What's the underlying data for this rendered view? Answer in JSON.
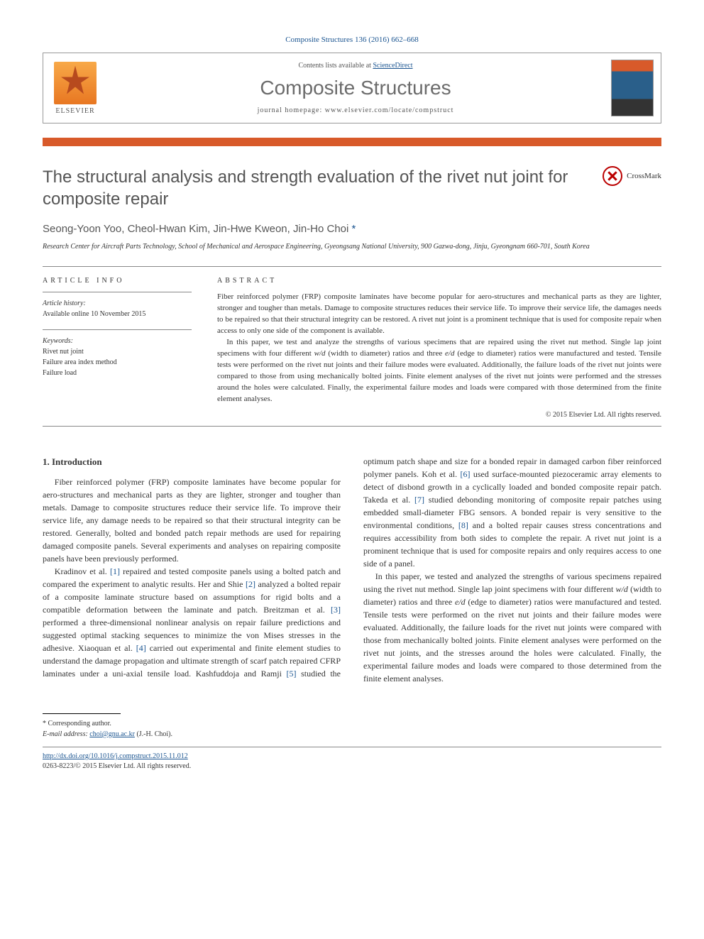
{
  "header": {
    "reference": "Composite Structures 136 (2016) 662–668",
    "contents_prefix": "Contents lists available at ",
    "contents_link": "ScienceDirect",
    "journal_name": "Composite Structures",
    "homepage_label": "journal homepage: ",
    "homepage_url": "www.elsevier.com/locate/compstruct",
    "publisher": "ELSEVIER",
    "cover_label": "COMPOSITE STRUCTURES"
  },
  "article": {
    "title": "The structural analysis and strength evaluation of the rivet nut joint for composite repair",
    "crossmark": "CrossMark",
    "authors_line": "Seong-Yoon Yoo, Cheol-Hwan Kim, Jin-Hwe Kweon, Jin-Ho Choi ",
    "corresponding_marker": "*",
    "affiliation": "Research Center for Aircraft Parts Technology, School of Mechanical and Aerospace Engineering, Gyeongsang National University, 900 Gazwa-dong, Jinju, Gyeongnam 660-701, South Korea"
  },
  "info": {
    "heading": "article info",
    "history_label": "Article history:",
    "history_text": "Available online 10 November 2015",
    "keywords_label": "Keywords:",
    "kw1": "Rivet nut joint",
    "kw2": "Failure area index method",
    "kw3": "Failure load"
  },
  "abstract": {
    "heading": "abstract",
    "p1": "Fiber reinforced polymer (FRP) composite laminates have become popular for aero-structures and mechanical parts as they are lighter, stronger and tougher than metals. Damage to composite structures reduces their service life. To improve their service life, the damages needs to be repaired so that their structural integrity can be restored. A rivet nut joint is a prominent technique that is used for composite repair when access to only one side of the component is available.",
    "p2_a": "In this paper, we test and analyze the strengths of various specimens that are repaired using the rivet nut method. Single lap joint specimens with four different ",
    "p2_b": " (width to diameter) ratios and three ",
    "p2_c": " (edge to diameter) ratios were manufactured and tested. Tensile tests were performed on the rivet nut joints and their failure modes were evaluated. Additionally, the failure loads of the rivet nut joints were compared to those from using mechanically bolted joints. Finite element analyses of the rivet nut joints were performed and the stresses around the holes were calculated. Finally, the experimental failure modes and loads were compared with those determined from the finite element analyses.",
    "wd": "w/d",
    "ed": "e/d",
    "copyright": "© 2015 Elsevier Ltd. All rights reserved."
  },
  "body": {
    "section_heading": "1. Introduction",
    "p1": "Fiber reinforced polymer (FRP) composite laminates have become popular for aero-structures and mechanical parts as they are lighter, stronger and tougher than metals. Damage to composite structures reduce their service life. To improve their service life, any damage needs to be repaired so that their structural integrity can be restored. Generally, bolted and bonded patch repair methods are used for repairing damaged composite panels. Several experiments and analyses on repairing composite panels have been previously performed.",
    "p2_a": "Kradinov et al. ",
    "c1": "[1]",
    "p2_b": " repaired and tested composite panels using a bolted patch and compared the experiment to analytic results. Her and Shie ",
    "c2": "[2]",
    "p2_c": " analyzed a bolted repair of a composite laminate structure based on assumptions for rigid bolts and a compatible deformation between the laminate and patch. Breitzman et al. ",
    "c3": "[3]",
    "p2_d": " performed a three-dimensional nonlinear analysis on repair failure predictions and suggested optimal stacking sequences to minimize the von Mises stresses in the adhesive. Xiaoquan et al. ",
    "c4": "[4]",
    "p2_e": " carried out experimental and finite element studies to understand the damage propagation and ultimate strength of scarf patch repaired CFRP laminates under a uni-axial tensile load. Kashfuddoja and Ramji ",
    "c5": "[5]",
    "p2_f": " studied the optimum patch shape and size for a bonded repair in damaged carbon fiber reinforced polymer panels. Koh et al. ",
    "c6": "[6]",
    "p2_g": " used surface-mounted piezoceramic array elements to detect of disbond growth in a cyclically loaded and bonded composite repair patch. Takeda et al. ",
    "c7": "[7]",
    "p2_h": " studied debonding monitoring of composite repair patches using embedded small-diameter FBG sensors. A bonded repair is very sensitive to the environmental conditions, ",
    "c8": "[8]",
    "p2_i": " and a bolted repair causes stress concentrations and requires accessibility from both sides to complete the repair. A rivet nut joint is a prominent technique that is used for composite repairs and only requires access to one side of a panel.",
    "p3_a": "In this paper, we tested and analyzed the strengths of various specimens repaired using the rivet nut method. Single lap joint specimens with four different ",
    "p3_b": " (width to diameter) ratios and three ",
    "p3_c": " (edge to diameter) ratios were manufactured and tested. Tensile tests were performed on the rivet nut joints and their failure modes were evaluated. Additionally, the failure loads for the rivet nut joints were compared with those from mechanically bolted joints. Finite element analyses were performed on the rivet nut joints, and the stresses around the holes were calculated. Finally, the experimental failure modes and loads were compared to those determined from the finite element analyses."
  },
  "footnotes": {
    "corr_label": "* Corresponding author.",
    "email_label": "E-mail address: ",
    "email": "choi@gnu.ac.kr",
    "email_who": " (J.-H. Choi)."
  },
  "bottom": {
    "doi": "http://dx.doi.org/10.1016/j.compstruct.2015.11.012",
    "issn_line": "0263-8223/© 2015 Elsevier Ltd. All rights reserved."
  },
  "colors": {
    "accent": "#d85a2a",
    "link": "#1a5490",
    "title_gray": "#545454"
  }
}
